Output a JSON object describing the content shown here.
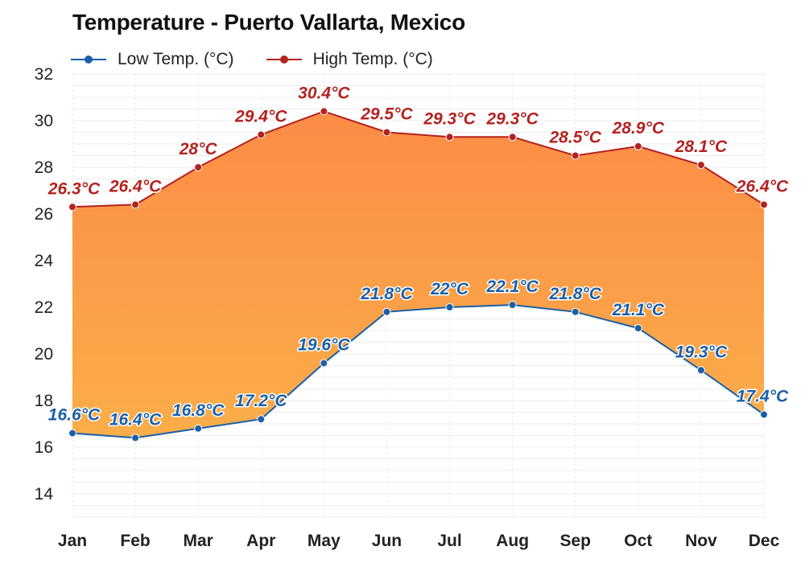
{
  "title": "Temperature - Puerto Vallarta, Mexico",
  "colors": {
    "low": "#1a5fa8",
    "high": "#b3221f",
    "fill_top": "#fb8c46",
    "fill_bottom": "#fbae4a"
  },
  "chart_data": {
    "type": "area",
    "title": "Temperature - Puerto Vallarta, Mexico",
    "categories": [
      "Jan",
      "Feb",
      "Mar",
      "Apr",
      "May",
      "Jun",
      "Jul",
      "Aug",
      "Sep",
      "Oct",
      "Nov",
      "Dec"
    ],
    "ylim": [
      13,
      32
    ],
    "yticks": [
      14,
      16,
      18,
      20,
      22,
      24,
      26,
      28,
      30,
      32
    ],
    "grid": true,
    "legend_position": "top-left",
    "series": [
      {
        "name": "Low Temp. (°C)",
        "values": [
          16.6,
          16.4,
          16.8,
          17.2,
          19.6,
          21.8,
          22.0,
          22.1,
          21.8,
          21.1,
          19.3,
          17.4
        ],
        "labels": [
          "16.6°C",
          "16.4°C",
          "16.8°C",
          "17.2°C",
          "19.6°C",
          "21.8°C",
          "22°C",
          "22.1°C",
          "21.8°C",
          "21.1°C",
          "19.3°C",
          "17.4°C"
        ]
      },
      {
        "name": "High Temp. (°C)",
        "values": [
          26.3,
          26.4,
          28.0,
          29.4,
          30.4,
          29.5,
          29.3,
          29.3,
          28.5,
          28.9,
          28.1,
          26.4
        ],
        "labels": [
          "26.3°C",
          "26.4°C",
          "28°C",
          "29.4°C",
          "30.4°C",
          "29.5°C",
          "29.3°C",
          "29.3°C",
          "28.5°C",
          "28.9°C",
          "28.1°C",
          "26.4°C"
        ]
      }
    ]
  }
}
